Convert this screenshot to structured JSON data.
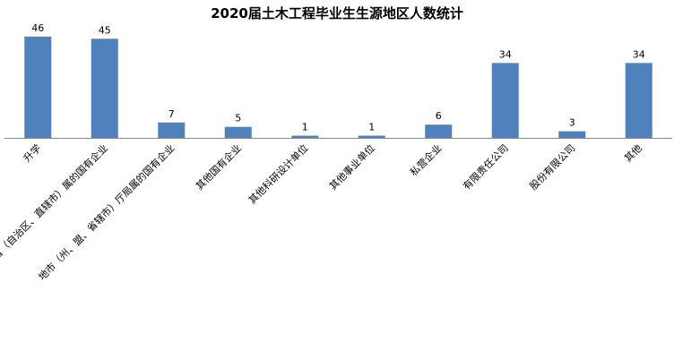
{
  "chart_data": {
    "type": "bar",
    "title": "2020届土木工程毕业生生源地区人数统计",
    "categories": [
      "升学",
      "省（自治区、直辖市）属的国有企业",
      "地市（州、盟、省辖市）厅局属的国有企业",
      "其他国有企业",
      "其他科研设计单位",
      "其他事业单位",
      "私营企业",
      "有限责任公司",
      "股份有限公司",
      "其他"
    ],
    "values": [
      46,
      45,
      7,
      5,
      1,
      1,
      6,
      34,
      3,
      34
    ],
    "color": "#4f81bd",
    "ylim": [
      0,
      50
    ]
  }
}
